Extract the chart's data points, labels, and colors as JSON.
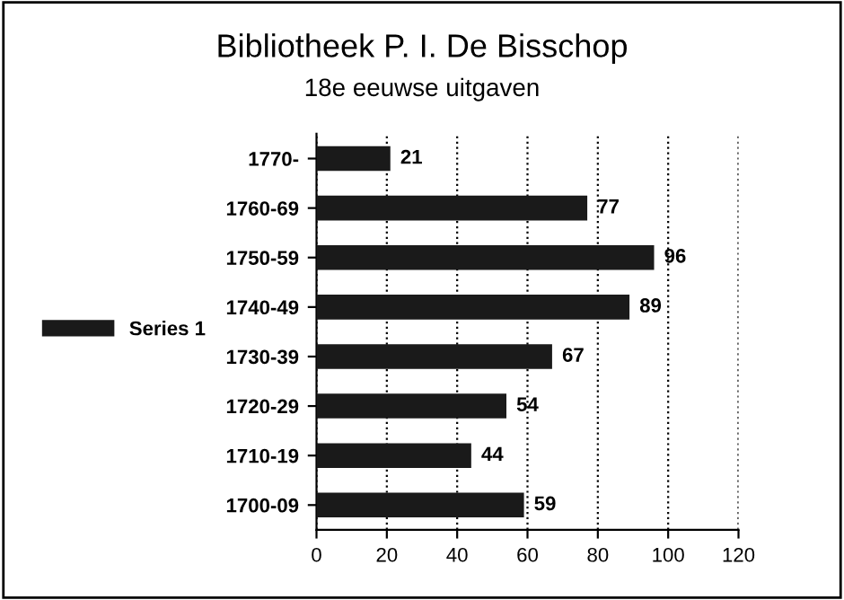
{
  "chart_data": {
    "type": "bar",
    "orientation": "horizontal",
    "title": "Bibliotheek P. I. De Bisschop",
    "subtitle": "18e eeuwse uitgaven",
    "categories": [
      "1770-",
      "1760-69",
      "1750-59",
      "1740-49",
      "1730-39",
      "1720-29",
      "1710-19",
      "1700-09"
    ],
    "series": [
      {
        "name": "Series 1",
        "color": "#1a1a1a",
        "values": [
          21,
          77,
          96,
          89,
          67,
          54,
          44,
          59
        ]
      }
    ],
    "xlim": [
      0,
      120
    ],
    "xticks": [
      0,
      20,
      40,
      60,
      80,
      100,
      120
    ],
    "grid": "x",
    "legend": "left",
    "data_labels": true
  }
}
